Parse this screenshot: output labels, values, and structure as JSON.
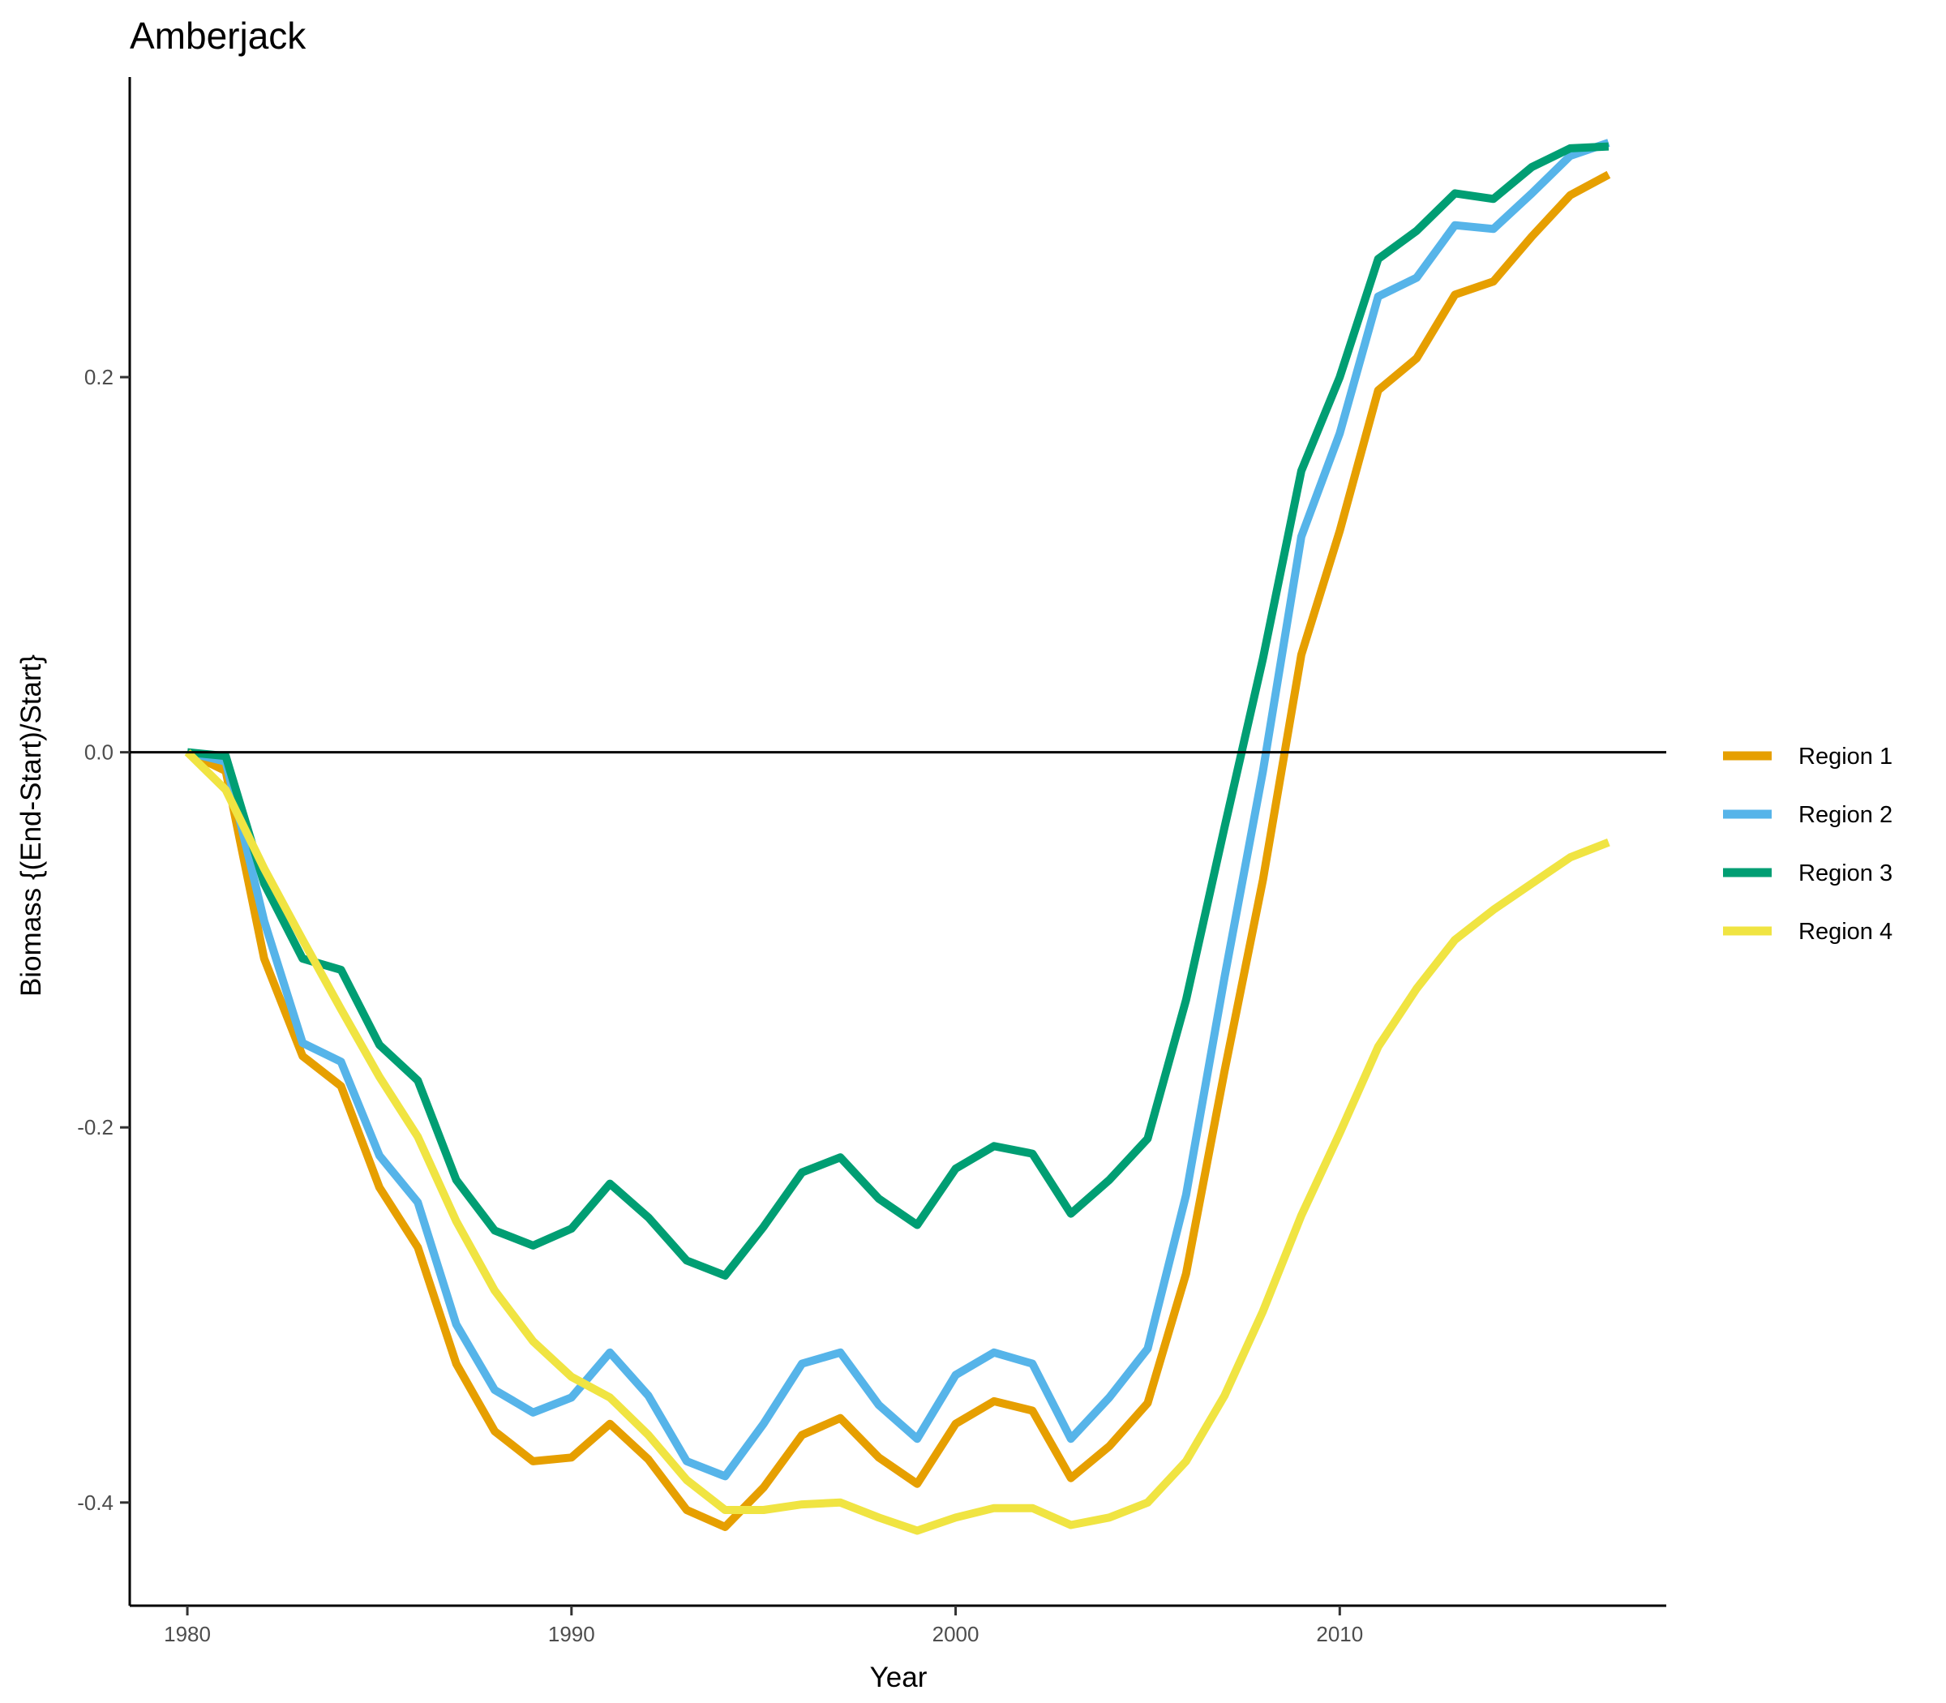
{
  "chart_data": {
    "type": "line",
    "title": "Amberjack",
    "xlabel": "Year",
    "ylabel": "Biomass {(End-Start)/Start}",
    "xlim": [
      1978.5,
      2018.5
    ],
    "ylim": [
      -0.455,
      0.36
    ],
    "x_ticks": [
      1980,
      1990,
      2000,
      2010
    ],
    "x_tick_labels": [
      "1980",
      "1990",
      "2000",
      "2010"
    ],
    "y_ticks": [
      -0.4,
      -0.2,
      0.0,
      0.2
    ],
    "y_tick_labels": [
      "-0.4",
      "-0.2",
      "0.0",
      "0.2"
    ],
    "reference_line_y": 0.0,
    "grid": false,
    "legend_position": "right",
    "x": [
      1980,
      1981,
      1982,
      1983,
      1984,
      1985,
      1986,
      1987,
      1988,
      1989,
      1990,
      1991,
      1992,
      1993,
      1994,
      1995,
      1996,
      1997,
      1998,
      1999,
      2000,
      2001,
      2002,
      2003,
      2004,
      2005,
      2006,
      2007,
      2008,
      2009,
      2010,
      2011,
      2012,
      2013,
      2014,
      2015,
      2016,
      2017
    ],
    "series": [
      {
        "name": "Region 1",
        "color": "#E69F00",
        "values": [
          0.0,
          -0.01,
          -0.11,
          -0.162,
          -0.178,
          -0.232,
          -0.264,
          -0.326,
          -0.362,
          -0.378,
          -0.376,
          -0.358,
          -0.377,
          -0.404,
          -0.413,
          -0.392,
          -0.364,
          -0.355,
          -0.376,
          -0.39,
          -0.358,
          -0.346,
          -0.351,
          -0.387,
          -0.37,
          -0.347,
          -0.278,
          -0.17,
          -0.068,
          0.052,
          0.118,
          0.193,
          0.21,
          0.244,
          0.251,
          0.275,
          0.297,
          0.308
        ]
      },
      {
        "name": "Region 2",
        "color": "#56B4E9",
        "values": [
          0.0,
          -0.005,
          -0.09,
          -0.155,
          -0.165,
          -0.215,
          -0.24,
          -0.305,
          -0.34,
          -0.352,
          -0.344,
          -0.32,
          -0.343,
          -0.378,
          -0.386,
          -0.358,
          -0.326,
          -0.32,
          -0.348,
          -0.366,
          -0.332,
          -0.32,
          -0.326,
          -0.366,
          -0.344,
          -0.318,
          -0.236,
          -0.12,
          -0.01,
          0.115,
          0.17,
          0.243,
          0.253,
          0.281,
          0.279,
          0.298,
          0.318,
          0.325
        ]
      },
      {
        "name": "Region 3",
        "color": "#009E73",
        "values": [
          0.0,
          -0.002,
          -0.07,
          -0.11,
          -0.116,
          -0.156,
          -0.175,
          -0.228,
          -0.255,
          -0.263,
          -0.254,
          -0.23,
          -0.248,
          -0.271,
          -0.279,
          -0.253,
          -0.224,
          -0.216,
          -0.238,
          -0.252,
          -0.222,
          -0.21,
          -0.214,
          -0.246,
          -0.228,
          -0.206,
          -0.132,
          -0.04,
          0.05,
          0.15,
          0.2,
          0.263,
          0.278,
          0.298,
          0.295,
          0.312,
          0.322,
          0.323
        ]
      },
      {
        "name": "Region 4",
        "color": "#F0E442",
        "values": [
          0.0,
          -0.02,
          -0.062,
          -0.1,
          -0.137,
          -0.173,
          -0.205,
          -0.25,
          -0.287,
          -0.314,
          -0.333,
          -0.344,
          -0.364,
          -0.388,
          -0.404,
          -0.404,
          -0.401,
          -0.4,
          -0.408,
          -0.415,
          -0.408,
          -0.403,
          -0.403,
          -0.412,
          -0.408,
          -0.4,
          -0.378,
          -0.343,
          -0.298,
          -0.247,
          -0.203,
          -0.157,
          -0.126,
          -0.1,
          -0.084,
          -0.07,
          -0.056,
          -0.048
        ]
      }
    ]
  }
}
